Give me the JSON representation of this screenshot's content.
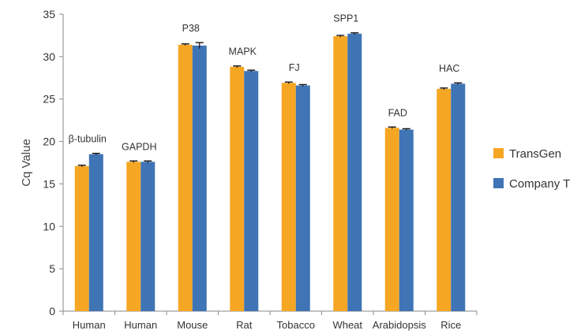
{
  "chart_data": {
    "type": "bar",
    "ylabel": "Cq Value",
    "ylim": [
      0,
      35
    ],
    "yticks": [
      0,
      5,
      10,
      15,
      20,
      25,
      30,
      35
    ],
    "grid": false,
    "legend_position": "right",
    "categories": [
      "Human",
      "Human",
      "Mouse",
      "Rat",
      "Tobacco",
      "Wheat",
      "Arabidopsis",
      "Rice"
    ],
    "annotations": [
      "β-tubulin",
      "GAPDH",
      "P38",
      "MAPK",
      "FJ",
      "SPP1",
      "FAD",
      "HAC"
    ],
    "series": [
      {
        "name": "TransGen",
        "color": "#F5A623",
        "values": [
          17.1,
          17.6,
          31.4,
          28.8,
          26.9,
          32.4,
          21.6,
          26.2
        ],
        "errors": [
          0.1,
          0.1,
          0.1,
          0.1,
          0.1,
          0.1,
          0.1,
          0.1
        ]
      },
      {
        "name": "Company T",
        "color": "#3F74B5",
        "values": [
          18.5,
          17.6,
          31.3,
          28.3,
          26.6,
          32.7,
          21.4,
          26.8
        ],
        "errors": [
          0.1,
          0.1,
          0.35,
          0.1,
          0.1,
          0.1,
          0.1,
          0.1
        ]
      }
    ]
  }
}
